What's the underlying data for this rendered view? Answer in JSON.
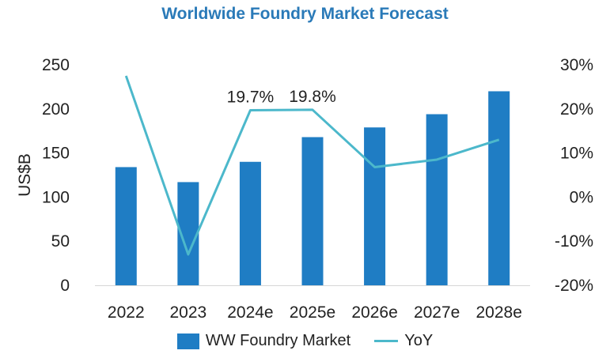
{
  "chart_data": {
    "type": "bar",
    "title": "Worldwide Foundry Market Forecast",
    "categories": [
      "2022",
      "2023",
      "2024e",
      "2025e",
      "2026e",
      "2027e",
      "2028e"
    ],
    "series": [
      {
        "name": "WW Foundry Market",
        "type": "bar",
        "axis": "left",
        "color": "#1f7dc4",
        "values": [
          134,
          117,
          140,
          168,
          179,
          194,
          220
        ]
      },
      {
        "name": "YoY",
        "type": "line",
        "axis": "right",
        "color": "#4cb8cb",
        "values": [
          27.5,
          -13.0,
          19.7,
          19.8,
          6.8,
          8.5,
          13.0
        ]
      }
    ],
    "ylabel": "US$B",
    "ylim": [
      0,
      250
    ],
    "yticks": [
      0,
      50,
      100,
      150,
      200,
      250
    ],
    "y2lim": [
      -20,
      30
    ],
    "y2ticks": [
      "-20%",
      "-10%",
      "0%",
      "10%",
      "20%",
      "30%"
    ],
    "annotations": [
      {
        "category": "2024e",
        "text": "19.7%"
      },
      {
        "category": "2025e",
        "text": "19.8%"
      }
    ],
    "grid": false,
    "legend": "bottom"
  }
}
